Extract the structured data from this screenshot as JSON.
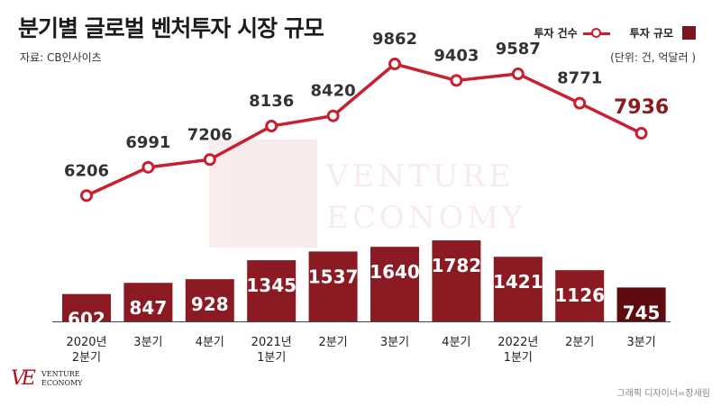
{
  "header": {
    "title": "분기별 글로벌 벤처투자 시장 규모",
    "source": "자료: CB인사이츠",
    "unit": "(단위: 건, 억달러 )"
  },
  "legend": {
    "line_label": "투자 건수",
    "bar_label": "투자 규모"
  },
  "footer": {
    "logo_mark": "VE",
    "logo_line1": "VENTURE",
    "logo_line2": "ECONOMY",
    "credit": "그래픽 디자이너=장세림"
  },
  "colors": {
    "bar": "#8b1a22",
    "bar_highlight": "#5e0a0f",
    "line": "#c8202f",
    "text_dark": "#333333",
    "label_highlight": "#8b1a22",
    "brand": "#b3101e"
  },
  "chart_data": {
    "type": "bar",
    "categories": [
      [
        "2020년",
        "2분기"
      ],
      [
        "3분기"
      ],
      [
        "4분기"
      ],
      [
        "2021년",
        "1분기"
      ],
      [
        "2분기"
      ],
      [
        "3분기"
      ],
      [
        "4분기"
      ],
      [
        "2022년",
        "1분기"
      ],
      [
        "2분기"
      ],
      [
        "3분기"
      ]
    ],
    "series": [
      {
        "name": "투자 규모",
        "type": "bar",
        "unit": "억달러",
        "values": [
          602,
          847,
          928,
          1345,
          1537,
          1640,
          1782,
          1421,
          1126,
          745
        ]
      },
      {
        "name": "투자 건수",
        "type": "line",
        "unit": "건",
        "values": [
          6206,
          6991,
          7206,
          8136,
          8420,
          9862,
          9403,
          9587,
          8771,
          7936
        ]
      }
    ],
    "highlight_index": 9
  }
}
